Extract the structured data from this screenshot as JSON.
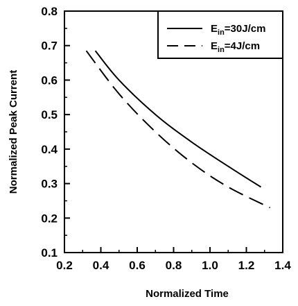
{
  "chart_data": {
    "type": "line",
    "xlabel": "Normalized Time",
    "ylabel": "Normalized Peak Current",
    "xlim": [
      0.2,
      1.4
    ],
    "ylim": [
      0.1,
      0.8
    ],
    "xticks": [
      "0.2",
      "0.4",
      "0.6",
      "0.8",
      "1.0",
      "1.2",
      "1.4"
    ],
    "yticks": [
      "0.1",
      "0.2",
      "0.3",
      "0.4",
      "0.5",
      "0.6",
      "0.7",
      "0.8"
    ],
    "grid": false,
    "legend_position": "top-right",
    "series": [
      {
        "name_main": "E",
        "name_sub": "in",
        "name_rest": "=30J/cm",
        "style": "solid",
        "x": [
          0.37,
          0.5,
          0.7,
          0.9,
          1.1,
          1.28
        ],
        "y": [
          0.685,
          0.6,
          0.5,
          0.42,
          0.35,
          0.29
        ]
      },
      {
        "name_main": "E",
        "name_sub": "in",
        "name_rest": "=4J/cm",
        "style": "dashed",
        "x": [
          0.32,
          0.5,
          0.7,
          0.9,
          1.1,
          1.33
        ],
        "y": [
          0.685,
          0.56,
          0.45,
          0.36,
          0.29,
          0.23
        ]
      }
    ]
  }
}
